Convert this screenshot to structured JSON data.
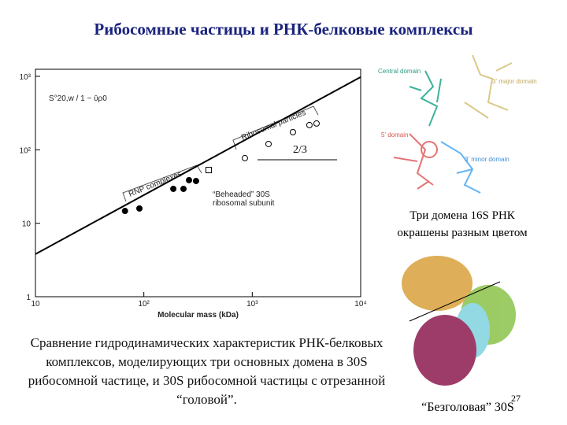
{
  "title": "Рибосомные частицы и РНК-белковые комплексы",
  "chart_data": {
    "type": "scatter",
    "xlabel": "Molecular mass (kDa)",
    "ylabel": "S°20,w / 1 − ῡρ0",
    "xlog": true,
    "ylog": true,
    "xlim": [
      10,
      10000
    ],
    "ylim": [
      1,
      1000
    ],
    "xticks": [
      {
        "value": 10,
        "label": "10"
      },
      {
        "value": 100,
        "label": "10²"
      },
      {
        "value": 1000,
        "label": "10³"
      },
      {
        "value": 10000,
        "label": "10⁴"
      }
    ],
    "yticks": [
      1,
      10,
      {
        "value": 100,
        "label": "10²"
      },
      {
        "value": 1000,
        "label": "10³"
      }
    ],
    "series": [
      {
        "marker": "filled",
        "color": "#000000",
        "x": [
          67,
          91,
          187,
          232,
          261,
          303
        ],
        "values": [
          14.7,
          15.9,
          29.4,
          29.4,
          38.6,
          37.6
        ]
      },
      {
        "marker": "open",
        "color": "#000000",
        "x": [
          855,
          1413,
          2372,
          3367,
          3917
        ],
        "values": [
          77,
          120,
          174,
          217,
          228
        ]
      },
      {
        "marker": "square",
        "color": "#000000",
        "x": [
          396
        ],
        "values": [
          53
        ]
      }
    ],
    "fit_line": {
      "x": [
        10,
        10000
      ],
      "values": [
        3.8,
        980
      ]
    },
    "annotations": [
      "Ribosomal particles",
      "RNP complexes",
      "“Beheaded” 30S",
      "ribosomal subunit",
      "2/3"
    ]
  },
  "domains": [
    "Central domain",
    "3' major domain",
    "5' domain",
    "3' minor domain"
  ],
  "caption_domains": [
    "Три домена 16S РНК",
    "окрашены разным цветом"
  ],
  "caption_beheaded": "“Безголовая” 30S",
  "page_number": "27",
  "description": "Сравнение гидродинамических характеристик РНК-белковых комплексов, моделирующих три основных домена в 30S рибосомной частице, и 30S рибосомной частицы с отрезанной “головой”."
}
